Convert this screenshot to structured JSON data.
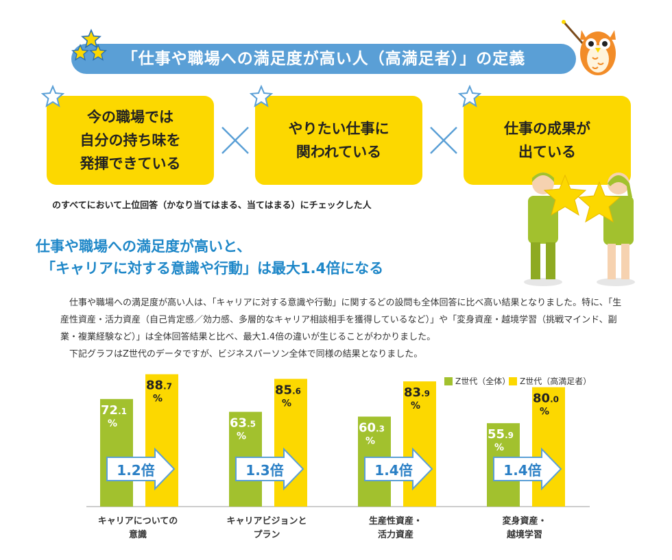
{
  "title": "「仕事や職場への満足度が高い人（高満足者）」の定義",
  "criteria": [
    "今の職場では\n自分の持ち味を\n発揮できている",
    "やりたい仕事に\n関われている",
    "仕事の成果が\n出ている"
  ],
  "criteria_note": "のすべてにおいて上位回答（かなり当てはまる、当てはまる）にチェックした人",
  "heading": {
    "line1": "仕事や職場への満足度が高いと、",
    "line2": "「キャリアに対する意識や行動」は最大1.4倍になる"
  },
  "body": {
    "p1": "仕事や職場への満足度が高い人は、「キャリアに対する意識や行動」に関するどの設問も全体回答に比べ高い結果となりました。特に、「生産性資産・活力資産（自己肯定感／効力感、多層的なキャリア相談相手を獲得しているなど）」や「変身資産・越境学習（挑戦マインド、副業・複業経験など）」は全体回答結果と比べ、最大1.4倍の違いが生じることがわかりました。",
    "p2": "下記グラフはZ世代のデータですが、ビジネスパーソン全体で同様の結果となりました。"
  },
  "colors": {
    "blue": "#5a9fd6",
    "yellow": "#fcd800",
    "green": "#a2c12e",
    "heading_blue": "#1e87c8",
    "arrow_text": "#2a7fc5"
  },
  "icons": [
    "star-icon",
    "owl-icon",
    "cross-icon",
    "arrow-icon",
    "people-with-stars-illustration"
  ],
  "chart_data": {
    "type": "bar",
    "categories": [
      "キャリアについての\n意識",
      "キャリアビジョンと\nプラン",
      "生産性資産・\n活力資産",
      "変身資産・\n越境学習"
    ],
    "series": [
      {
        "name": "Z世代（全体）",
        "values": [
          72.1,
          63.5,
          60.3,
          55.9
        ],
        "color": "#a2c12e"
      },
      {
        "name": "Z世代（高満足者）",
        "values": [
          88.7,
          85.6,
          83.9,
          80.0
        ],
        "color": "#fcd800"
      }
    ],
    "multiplier_labels": [
      "1.2倍",
      "1.3倍",
      "1.4倍",
      "1.4倍"
    ],
    "unit": "%",
    "ylim": [
      0,
      100
    ],
    "legend_position": "top-right",
    "grid": false
  }
}
